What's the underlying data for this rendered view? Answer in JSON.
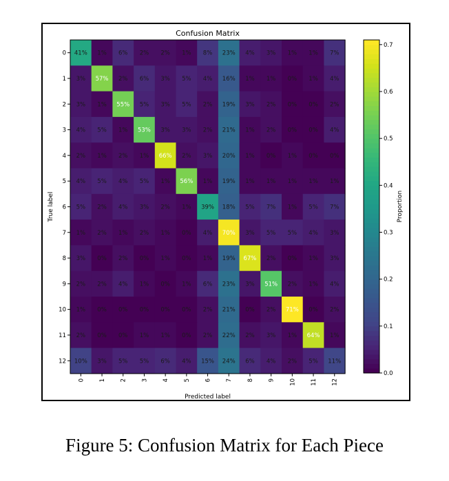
{
  "chart_data": {
    "type": "heatmap",
    "title": "Confusion Matrix",
    "xlabel": "Predicted label",
    "ylabel": "True label",
    "x_categories": [
      "0",
      "1",
      "2",
      "3",
      "4",
      "5",
      "6",
      "7",
      "8",
      "9",
      "10",
      "11",
      "12"
    ],
    "y_categories": [
      "0",
      "1",
      "2",
      "3",
      "4",
      "5",
      "6",
      "7",
      "8",
      "9",
      "10",
      "11",
      "12"
    ],
    "value_unit": "%",
    "colormap": "viridis",
    "values": [
      [
        41,
        1,
        6,
        2,
        2,
        1,
        8,
        23,
        4,
        3,
        1,
        1,
        7
      ],
      [
        3,
        57,
        2,
        6,
        3,
        5,
        4,
        16,
        1,
        1,
        0,
        1,
        4
      ],
      [
        3,
        1,
        55,
        5,
        3,
        5,
        2,
        19,
        3,
        2,
        0,
        0,
        2
      ],
      [
        4,
        5,
        1,
        53,
        3,
        3,
        2,
        21,
        1,
        2,
        0,
        0,
        4
      ],
      [
        2,
        1,
        2,
        1,
        66,
        2,
        3,
        20,
        1,
        0,
        1,
        0,
        0
      ],
      [
        4,
        5,
        4,
        5,
        1,
        56,
        1,
        19,
        1,
        1,
        1,
        1,
        1
      ],
      [
        5,
        2,
        4,
        3,
        2,
        1,
        39,
        18,
        5,
        7,
        1,
        5,
        7
      ],
      [
        1,
        2,
        1,
        2,
        1,
        0,
        4,
        70,
        3,
        5,
        5,
        4,
        3
      ],
      [
        3,
        0,
        2,
        0,
        1,
        0,
        1,
        19,
        67,
        2,
        0,
        1,
        3
      ],
      [
        2,
        2,
        4,
        1,
        0,
        1,
        6,
        23,
        3,
        51,
        2,
        1,
        4
      ],
      [
        1,
        0,
        0,
        0,
        0,
        0,
        2,
        21,
        0,
        2,
        71,
        0,
        2
      ],
      [
        2,
        0,
        0,
        1,
        1,
        0,
        2,
        22,
        2,
        3,
        1,
        64,
        1
      ],
      [
        10,
        3,
        5,
        5,
        6,
        4,
        15,
        24,
        6,
        4,
        2,
        5,
        11
      ]
    ],
    "colorbar": {
      "label": "Proportion",
      "range": [
        0.0,
        0.71
      ],
      "ticks": [
        "0.0",
        "0.1",
        "0.2",
        "0.3",
        "0.4",
        "0.5",
        "0.6",
        "0.7"
      ]
    }
  },
  "caption": "Figure 5: Confusion Matrix for Each Piece"
}
